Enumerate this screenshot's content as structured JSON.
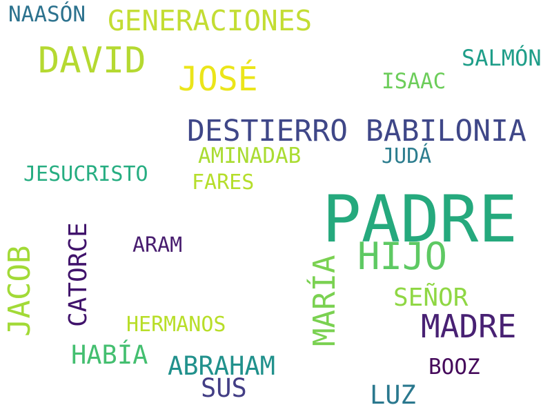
{
  "words": [
    {
      "id": "padre",
      "text": "PADRE",
      "color": "#25a97d"
    },
    {
      "id": "destierro-babilonia",
      "text": "DESTIERRO BABILONIA",
      "color": "#3f4788"
    },
    {
      "id": "david",
      "text": "DAVID",
      "color": "#b5d931"
    },
    {
      "id": "generaciones",
      "text": "GENERACIONES",
      "color": "#c3dd33"
    },
    {
      "id": "jose",
      "text": "JOSÉ",
      "color": "#ebe51a"
    },
    {
      "id": "hijo",
      "text": "HIJO",
      "color": "#5ec963"
    },
    {
      "id": "madre",
      "text": "MADRE",
      "color": "#482173"
    },
    {
      "id": "maria",
      "text": "MARÍA",
      "color": "#7ad151"
    },
    {
      "id": "jacob",
      "text": "JACOB",
      "color": "#a2da37"
    },
    {
      "id": "catorce",
      "text": "CATORCE",
      "color": "#40136b"
    },
    {
      "id": "abraham",
      "text": "ABRAHAM",
      "color": "#21918c"
    },
    {
      "id": "habia",
      "text": "HABÍA",
      "color": "#44bf70"
    },
    {
      "id": "salmon",
      "text": "SALMÓN",
      "color": "#1f9e89"
    },
    {
      "id": "senor",
      "text": "SEÑOR",
      "color": "#8fd744"
    },
    {
      "id": "naason",
      "text": "NAASÓN",
      "color": "#2c728e"
    },
    {
      "id": "isaac",
      "text": "ISAAC",
      "color": "#6ccd5a"
    },
    {
      "id": "jesucristo",
      "text": "JESUCRISTO",
      "color": "#26ad81"
    },
    {
      "id": "aminadab",
      "text": "AMINADAB",
      "color": "#aadc32"
    },
    {
      "id": "juda",
      "text": "JUDÁ",
      "color": "#2c7d8e"
    },
    {
      "id": "fares",
      "text": "FARES",
      "color": "#b5de2b"
    },
    {
      "id": "aram",
      "text": "ARAM",
      "color": "#481d6f"
    },
    {
      "id": "hermanos",
      "text": "HERMANOS",
      "color": "#b8de29"
    },
    {
      "id": "sus",
      "text": "SUS",
      "color": "#433e85"
    },
    {
      "id": "luz",
      "text": "LUZ",
      "color": "#2a788e"
    },
    {
      "id": "booz",
      "text": "BOOZ",
      "color": "#450a5b"
    }
  ]
}
